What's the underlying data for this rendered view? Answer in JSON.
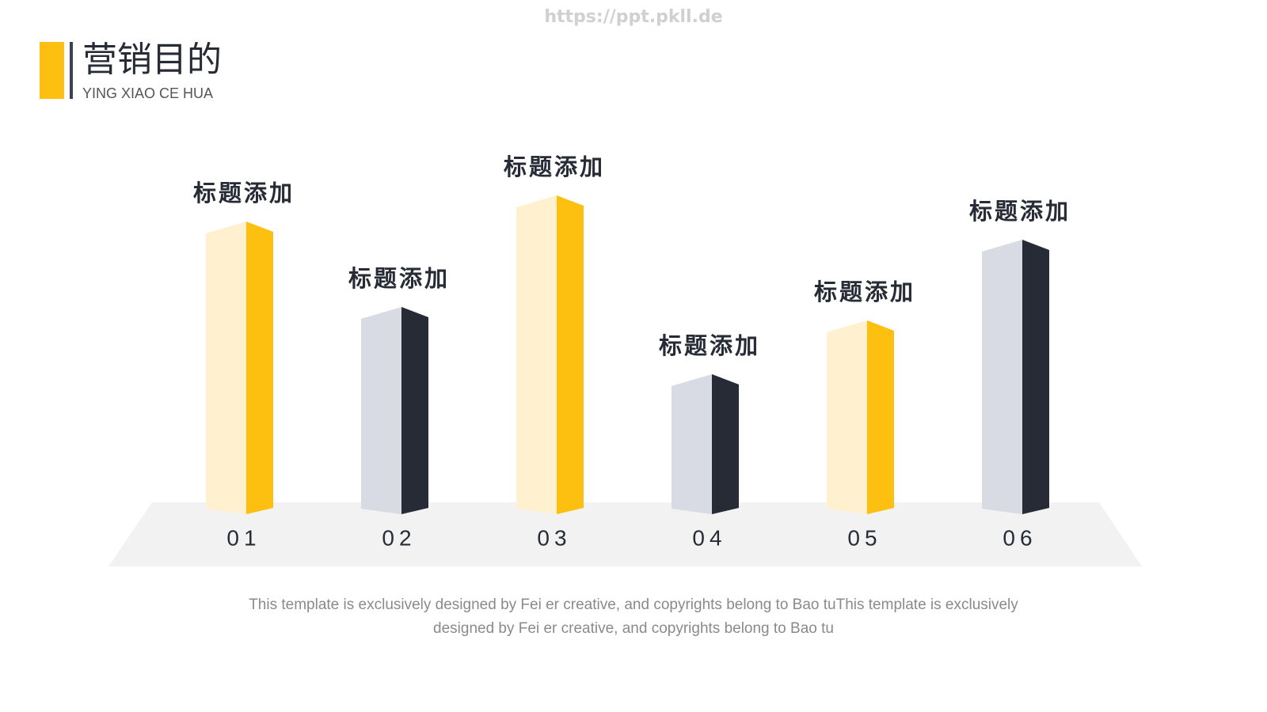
{
  "watermark": "https://ppt.pkll.de",
  "header": {
    "title": "营销目的",
    "subtitle": "YING XIAO CE HUA"
  },
  "chart_data": {
    "type": "bar3d",
    "categories": [
      "01",
      "02",
      "03",
      "04",
      "05",
      "06"
    ],
    "labels": [
      "标题添加",
      "标题添加",
      "标题添加",
      "标题添加",
      "标题添加",
      "标题添加"
    ],
    "values": [
      368,
      260,
      401,
      175,
      243,
      345
    ],
    "colors": [
      "#fdc010",
      "#262b35",
      "#fdc010",
      "#262b35",
      "#fdc010",
      "#262b35"
    ],
    "face_colors": [
      "#fff1d0",
      "#d8dbe3",
      "#fff1d0",
      "#d8dbe3",
      "#fff1d0",
      "#d8dbe3"
    ]
  },
  "footer": "This template is exclusively designed by Fei er creative, and copyrights belong to Bao tuThis template is exclusively designed by Fei er creative, and copyrights belong to Bao tu"
}
